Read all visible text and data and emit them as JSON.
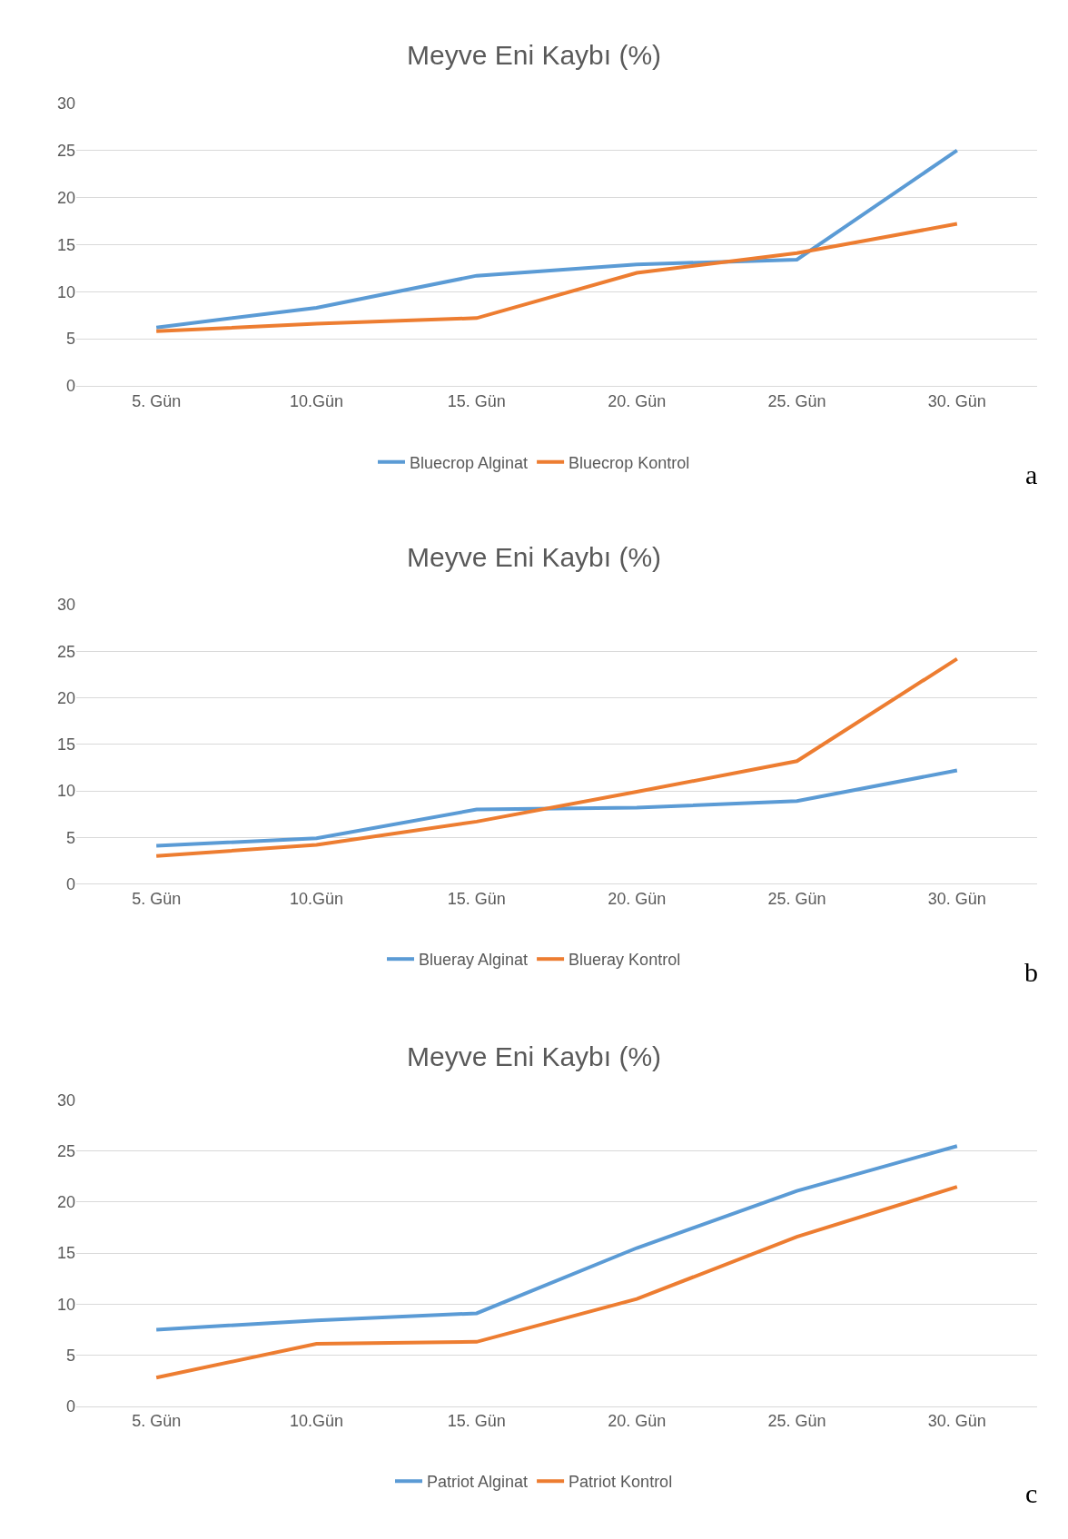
{
  "chart_data": [
    {
      "type": "line",
      "title": "Meyve Eni Kaybı (%)",
      "categories": [
        "5. Gün",
        "10.Gün",
        "15. Gün",
        "20. Gün",
        "25. Gün",
        "30. Gün"
      ],
      "ylim": [
        0,
        30
      ],
      "yticks": [
        0,
        5,
        10,
        15,
        20,
        25,
        30
      ],
      "grid": "y",
      "legend": "bottom",
      "annotations": [
        "a"
      ],
      "series": [
        {
          "name": "Bluecrop Alginat",
          "color": "#5b9bd5",
          "values": [
            6.2,
            8.3,
            11.7,
            12.9,
            13.4,
            25.0
          ]
        },
        {
          "name": "Bluecrop Kontrol",
          "color": "#ed7d31",
          "values": [
            5.8,
            6.6,
            7.2,
            12.0,
            14.1,
            17.2
          ]
        }
      ]
    },
    {
      "type": "line",
      "title": "Meyve Eni Kaybı (%)",
      "categories": [
        "5. Gün",
        "10.Gün",
        "15. Gün",
        "20. Gün",
        "25. Gün",
        "30. Gün"
      ],
      "ylim": [
        0,
        30
      ],
      "yticks": [
        0,
        5,
        10,
        15,
        20,
        25,
        30
      ],
      "grid": "y",
      "legend": "bottom",
      "annotations": [
        "b"
      ],
      "series": [
        {
          "name": "Blueray Alginat",
          "color": "#5b9bd5",
          "values": [
            4.1,
            4.9,
            8.0,
            8.2,
            8.9,
            12.2
          ]
        },
        {
          "name": "Blueray Kontrol",
          "color": "#ed7d31",
          "values": [
            3.0,
            4.2,
            6.7,
            9.9,
            13.2,
            24.2
          ]
        }
      ]
    },
    {
      "type": "line",
      "title": "Meyve Eni Kaybı (%)",
      "categories": [
        "5. Gün",
        "10.Gün",
        "15. Gün",
        "20. Gün",
        "25. Gün",
        "30. Gün"
      ],
      "ylim": [
        0,
        30
      ],
      "yticks": [
        0,
        5,
        10,
        15,
        20,
        25,
        30
      ],
      "grid": "y",
      "legend": "bottom",
      "annotations": [
        "c"
      ],
      "series": [
        {
          "name": "Patriot Alginat",
          "color": "#5b9bd5",
          "values": [
            7.5,
            8.4,
            9.1,
            15.5,
            21.1,
            25.5
          ]
        },
        {
          "name": "Patriot Kontrol",
          "color": "#ed7d31",
          "values": [
            2.8,
            6.1,
            6.3,
            10.5,
            16.6,
            21.5
          ]
        }
      ]
    }
  ]
}
